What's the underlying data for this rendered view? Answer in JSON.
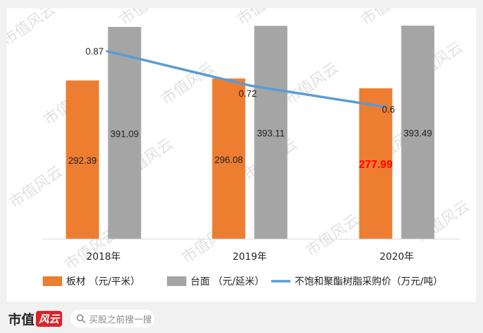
{
  "watermark": {
    "text": "市值风云"
  },
  "chart_data": {
    "type": "bar",
    "categories": [
      "2018年",
      "2019年",
      "2020年"
    ],
    "series": [
      {
        "name": "板材 （元/平米）",
        "kind": "bar",
        "color": "#ed7d31",
        "values": [
          292.39,
          296.08,
          277.99
        ],
        "labels": [
          "292.39",
          "296.08",
          "277.99"
        ],
        "highlight_index": 2,
        "highlight_color": "#ff0000"
      },
      {
        "name": "台面 （元/延米）",
        "kind": "bar",
        "color": "#a5a5a5",
        "values": [
          391.09,
          393.11,
          393.49
        ],
        "labels": [
          "391.09",
          "393.11",
          "393.49"
        ]
      },
      {
        "name": "不饱和聚酯树脂采购价（万元/吨）",
        "kind": "line",
        "color": "#5b9bd5",
        "values": [
          0.87,
          0.72,
          0.6
        ],
        "labels": [
          "0.87",
          "0.72",
          "0.6"
        ]
      }
    ],
    "legend_position": "bottom",
    "grid": false
  },
  "footer": {
    "brand": "市值",
    "brand_mark": "风云",
    "search_placeholder": "买股之前搜一搜"
  }
}
